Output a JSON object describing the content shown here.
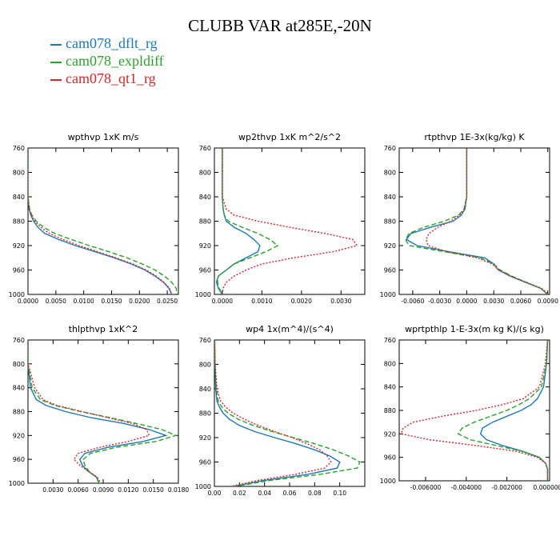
{
  "title": "CLUBB VAR at285E,-20N",
  "legend": [
    {
      "name": "cam078_dflt_rg",
      "color": "#1f77b4",
      "dash": "solid"
    },
    {
      "name": "cam078_expldiff",
      "color": "#2ca02c",
      "dash": "dashed"
    },
    {
      "name": "cam078_qt1_rg",
      "color": "#d62728",
      "dash": "dotted"
    }
  ],
  "chart_data": [
    {
      "type": "line",
      "title": "wpthvp  1xK m/s",
      "xlim": [
        0,
        0.027
      ],
      "ylim": [
        760,
        1000
      ],
      "y_inverted": true,
      "xticks": [
        "0.0000",
        "0.0050",
        "0.0100",
        "0.0150",
        "0.0200",
        "0.0250"
      ],
      "xtick_values": [
        0,
        0.005,
        0.01,
        0.015,
        0.02,
        0.025
      ],
      "yticks": [
        760,
        800,
        840,
        880,
        920,
        960,
        1000
      ],
      "y": [
        760,
        800,
        840,
        860,
        870,
        880,
        890,
        900,
        910,
        920,
        930,
        940,
        950,
        960,
        970,
        980,
        990,
        1000
      ],
      "series": [
        {
          "name": "cam078_dflt_rg",
          "values": [
            0,
            0,
            0,
            0.0002,
            0.0005,
            0.001,
            0.0018,
            0.003,
            0.0055,
            0.0085,
            0.012,
            0.0155,
            0.0185,
            0.021,
            0.0228,
            0.0243,
            0.0253,
            0.0258
          ]
        },
        {
          "name": "cam078_expldiff",
          "values": [
            0,
            0,
            0,
            0.0003,
            0.0007,
            0.0015,
            0.0028,
            0.0048,
            0.0078,
            0.011,
            0.0145,
            0.0178,
            0.0205,
            0.0228,
            0.0245,
            0.0258,
            0.0266,
            0.0268
          ]
        },
        {
          "name": "cam078_qt1_rg",
          "values": [
            0,
            0,
            0,
            0.0002,
            0.0006,
            0.0012,
            0.0023,
            0.0038,
            0.0063,
            0.0092,
            0.0125,
            0.0158,
            0.0188,
            0.0212,
            0.023,
            0.0244,
            0.0254,
            0.0258
          ]
        }
      ]
    },
    {
      "type": "line",
      "title": "wp2thvp  1xK m^2/s^2",
      "xlim": [
        -0.0002,
        0.0036
      ],
      "ylim": [
        760,
        1000
      ],
      "y_inverted": true,
      "xticks": [
        "0.0000",
        "0.0010",
        "0.0020",
        "0.0030"
      ],
      "xtick_values": [
        0,
        0.001,
        0.002,
        0.003
      ],
      "yticks": [
        760,
        800,
        840,
        880,
        920,
        960,
        1000
      ],
      "y": [
        760,
        800,
        840,
        860,
        870,
        880,
        890,
        900,
        910,
        920,
        930,
        940,
        950,
        960,
        970,
        980,
        990,
        1000
      ],
      "series": [
        {
          "name": "cam078_dflt_rg",
          "values": [
            0,
            0,
            0,
            2e-05,
            5e-05,
            0.0001,
            0.0003,
            0.0006,
            0.0008,
            0.00095,
            0.0009,
            0.0006,
            0.0003,
            0.0001,
            -0.0001,
            -0.00015,
            -0.0001,
            0
          ]
        },
        {
          "name": "cam078_expldiff",
          "values": [
            0,
            0,
            0,
            2e-05,
            5e-05,
            0.00015,
            0.0005,
            0.0009,
            0.0012,
            0.0014,
            0.0011,
            0.0007,
            0.0003,
            0.0001,
            -0.0001,
            -0.00012,
            -8e-05,
            0
          ]
        },
        {
          "name": "cam078_qt1_rg",
          "values": [
            0,
            0,
            0,
            0.0001,
            0.0003,
            0.0009,
            0.0017,
            0.0026,
            0.0033,
            0.0034,
            0.0028,
            0.0018,
            0.001,
            0.0006,
            0.0003,
            0.0001,
            2e-05,
            0
          ]
        }
      ]
    },
    {
      "type": "line",
      "title": "rtpthvp  1E-3x(kg/kg) K",
      "xlim": [
        -0.0075,
        0.0092
      ],
      "ylim": [
        760,
        1000
      ],
      "y_inverted": true,
      "xticks": [
        "-0.0060",
        "-0.0030",
        "0.0000",
        "0.0030",
        "0.0060",
        "0.0090"
      ],
      "xtick_values": [
        -0.006,
        -0.003,
        0,
        0.003,
        0.006,
        0.009
      ],
      "yticks": [
        760,
        800,
        840,
        880,
        920,
        960,
        1000
      ],
      "y": [
        760,
        800,
        840,
        860,
        870,
        880,
        890,
        900,
        910,
        920,
        930,
        940,
        950,
        960,
        970,
        980,
        990,
        1000
      ],
      "series": [
        {
          "name": "cam078_dflt_rg",
          "values": [
            0,
            0,
            0,
            -0.0002,
            -0.0006,
            -0.0015,
            -0.004,
            -0.0062,
            -0.0067,
            -0.0055,
            -0.002,
            0.002,
            0.003,
            0.0035,
            0.0048,
            0.0065,
            0.0082,
            0.009
          ]
        },
        {
          "name": "cam078_expldiff",
          "values": [
            0,
            0,
            0,
            -0.0003,
            -0.0009,
            -0.0025,
            -0.0048,
            -0.0064,
            -0.0068,
            -0.0064,
            -0.0025,
            0.0015,
            0.003,
            0.0037,
            0.005,
            0.0066,
            0.0082,
            0.009
          ]
        },
        {
          "name": "cam078_qt1_rg",
          "values": [
            0,
            0,
            0,
            -0.0003,
            -0.0008,
            -0.0018,
            -0.0032,
            -0.0042,
            -0.0045,
            -0.0043,
            -0.0022,
            0.0012,
            0.0028,
            0.0036,
            0.0049,
            0.0066,
            0.0083,
            0.0091
          ]
        }
      ]
    },
    {
      "type": "line",
      "title": "thlpthvp  1xK^2",
      "xlim": [
        0,
        0.018
      ],
      "ylim": [
        760,
        1000
      ],
      "y_inverted": true,
      "xticks": [
        "0.0030",
        "0.0060",
        "0.0090",
        "0.0120",
        "0.0150",
        "0.0180"
      ],
      "xtick_values": [
        0.003,
        0.006,
        0.009,
        0.012,
        0.015,
        0.018
      ],
      "yticks": [
        760,
        800,
        840,
        880,
        920,
        960,
        1000
      ],
      "y": [
        760,
        800,
        840,
        860,
        870,
        880,
        890,
        900,
        910,
        920,
        930,
        940,
        950,
        960,
        970,
        980,
        990,
        1000
      ],
      "series": [
        {
          "name": "cam078_dflt_rg",
          "values": [
            0,
            0,
            0.0003,
            0.001,
            0.0022,
            0.0045,
            0.0075,
            0.0115,
            0.0145,
            0.0165,
            0.0138,
            0.0095,
            0.0068,
            0.0062,
            0.0065,
            0.0072,
            0.0082,
            0.0085
          ]
        },
        {
          "name": "cam078_expldiff",
          "values": [
            0,
            0,
            0.0005,
            0.0015,
            0.0033,
            0.0063,
            0.0098,
            0.013,
            0.016,
            0.0177,
            0.0153,
            0.0105,
            0.0075,
            0.0066,
            0.0068,
            0.0073,
            0.0082,
            0.0085
          ]
        },
        {
          "name": "cam078_qt1_rg",
          "values": [
            0,
            0,
            0.0008,
            0.0018,
            0.0035,
            0.0065,
            0.0095,
            0.0125,
            0.0142,
            0.0145,
            0.012,
            0.0085,
            0.006,
            0.0055,
            0.0062,
            0.0072,
            0.0083,
            0.0087
          ]
        }
      ]
    },
    {
      "type": "line",
      "title": "wp4  1x(m^4)/(s^4)",
      "xlim": [
        0,
        0.12
      ],
      "ylim": [
        760,
        1000
      ],
      "y_inverted": true,
      "xticks": [
        "0.00",
        "0.02",
        "0.04",
        "0.06",
        "0.08",
        "0.10"
      ],
      "xtick_values": [
        0,
        0.02,
        0.04,
        0.06,
        0.08,
        0.1
      ],
      "yticks": [
        760,
        800,
        840,
        880,
        920,
        960,
        1000
      ],
      "y": [
        760,
        800,
        840,
        860,
        870,
        880,
        890,
        900,
        910,
        920,
        930,
        940,
        950,
        960,
        970,
        980,
        990,
        1000
      ],
      "series": [
        {
          "name": "cam078_dflt_rg",
          "values": [
            0.0002,
            0.0005,
            0.001,
            0.002,
            0.004,
            0.007,
            0.012,
            0.02,
            0.032,
            0.048,
            0.065,
            0.08,
            0.092,
            0.1,
            0.098,
            0.075,
            0.04,
            0.015
          ]
        },
        {
          "name": "cam078_expldiff",
          "values": [
            0.0002,
            0.0005,
            0.0015,
            0.003,
            0.006,
            0.011,
            0.019,
            0.031,
            0.046,
            0.063,
            0.08,
            0.095,
            0.107,
            0.116,
            0.114,
            0.085,
            0.045,
            0.016
          ]
        },
        {
          "name": "cam078_qt1_rg",
          "values": [
            0.0002,
            0.0006,
            0.002,
            0.005,
            0.009,
            0.015,
            0.024,
            0.035,
            0.048,
            0.062,
            0.074,
            0.084,
            0.09,
            0.093,
            0.088,
            0.065,
            0.035,
            0.013
          ]
        }
      ]
    },
    {
      "type": "line",
      "title": "wprtpthlp  1-E-3x(m kg K)/(s kg)",
      "xlim": [
        -0.0073,
        0.0001
      ],
      "ylim": [
        760,
        1000
      ],
      "y_inverted": true,
      "xticks": [
        "-0.006000",
        "-0.004000",
        "-0.002000",
        "0.000000"
      ],
      "xtick_values": [
        -0.006,
        -0.004,
        -0.002,
        0
      ],
      "yticks": [
        760,
        800,
        840,
        880,
        920,
        960,
        1000
      ],
      "y": [
        760,
        800,
        840,
        860,
        870,
        880,
        890,
        900,
        910,
        920,
        930,
        940,
        950,
        960,
        970,
        980,
        990,
        1000
      ],
      "series": [
        {
          "name": "cam078_dflt_rg",
          "values": [
            0,
            -5e-05,
            -0.0002,
            -0.0005,
            -0.0008,
            -0.0013,
            -0.002,
            -0.0027,
            -0.0032,
            -0.0033,
            -0.003,
            -0.0022,
            -0.0012,
            -0.0004,
            -0.0001,
            0,
            0,
            0
          ]
        },
        {
          "name": "cam078_expldiff",
          "values": [
            0,
            -5e-05,
            -0.0003,
            -0.0009,
            -0.0014,
            -0.002,
            -0.0028,
            -0.0036,
            -0.0042,
            -0.0044,
            -0.0038,
            -0.0025,
            -0.0012,
            -0.0004,
            -0.0001,
            0,
            0,
            0
          ]
        },
        {
          "name": "cam078_qt1_rg",
          "values": [
            0,
            -0.0001,
            -0.0004,
            -0.0012,
            -0.0022,
            -0.0035,
            -0.0052,
            -0.0066,
            -0.0071,
            -0.0072,
            -0.0058,
            -0.0035,
            -0.0015,
            -0.0005,
            -0.0001,
            0,
            0,
            0
          ]
        }
      ]
    }
  ]
}
